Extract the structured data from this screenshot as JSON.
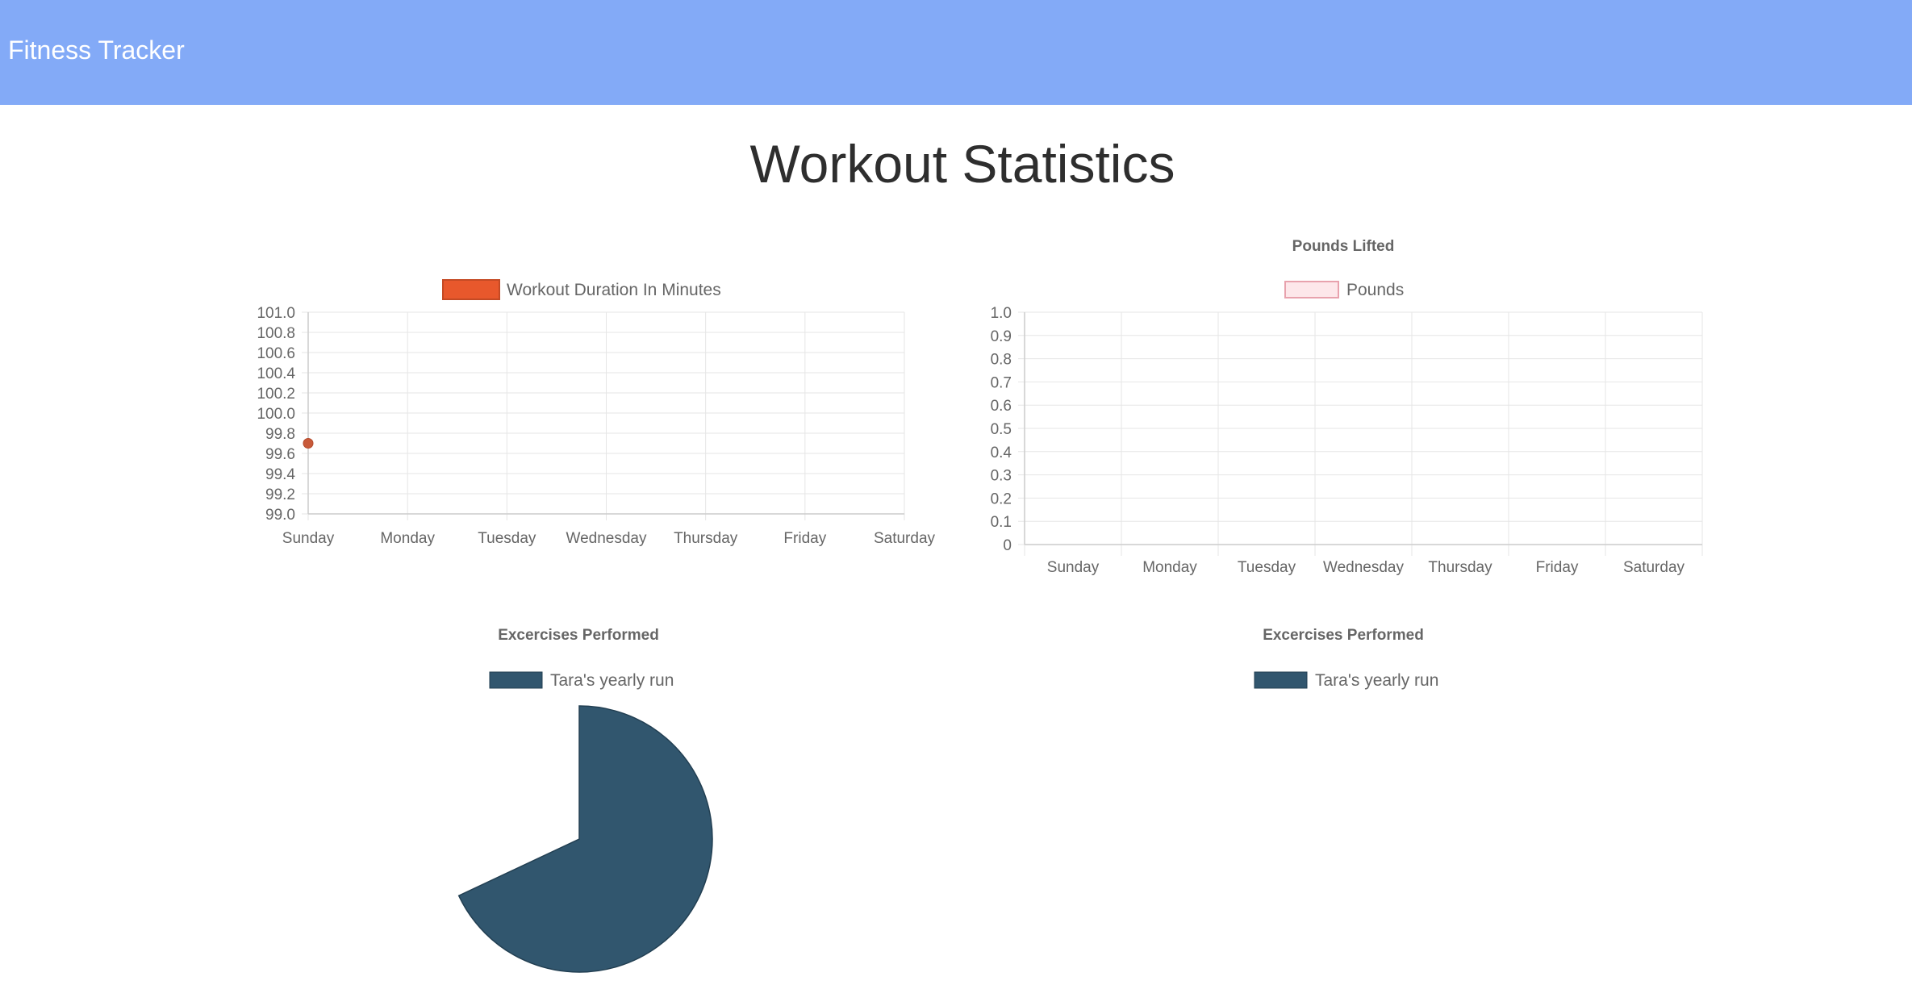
{
  "navbar": {
    "brand": "Fitness Tracker"
  },
  "page": {
    "title": "Workout Statistics"
  },
  "chart_data": [
    {
      "type": "line",
      "title": "",
      "categories": [
        "Sunday",
        "Monday",
        "Tuesday",
        "Wednesday",
        "Thursday",
        "Friday",
        "Saturday"
      ],
      "series": [
        {
          "name": "Workout Duration In Minutes",
          "color": "#e8582c",
          "values": [
            99.7,
            null,
            null,
            null,
            null,
            null,
            null
          ]
        }
      ],
      "ylim": [
        99.0,
        101.0
      ],
      "yticks": [
        "101.0",
        "100.8",
        "100.6",
        "100.4",
        "100.2",
        "100.0",
        "99.8",
        "99.6",
        "99.4",
        "99.2",
        "99.0"
      ],
      "grid": true,
      "legend": "top"
    },
    {
      "type": "bar",
      "title": "Pounds Lifted",
      "categories": [
        "Sunday",
        "Monday",
        "Tuesday",
        "Wednesday",
        "Thursday",
        "Friday",
        "Saturday"
      ],
      "series": [
        {
          "name": "Pounds",
          "color": "#fde7ea",
          "border_color": "#e8a2ad",
          "values": [
            0,
            0,
            0,
            0,
            0,
            0,
            0
          ]
        }
      ],
      "ylim": [
        0,
        1.0
      ],
      "yticks": [
        "1.0",
        "0.9",
        "0.8",
        "0.7",
        "0.6",
        "0.5",
        "0.4",
        "0.3",
        "0.2",
        "0.1",
        "0"
      ],
      "grid": true,
      "legend": "top"
    },
    {
      "type": "pie",
      "title": "Excercises Performed",
      "slices": [
        {
          "label": "Tara's yearly run",
          "color": "#31566e",
          "value": 68
        }
      ],
      "legend": "top"
    },
    {
      "type": "pie",
      "title": "Excercises Performed",
      "slices": [
        {
          "label": "Tara's yearly run",
          "color": "#31566e",
          "value": 0
        }
      ],
      "legend": "top"
    }
  ]
}
